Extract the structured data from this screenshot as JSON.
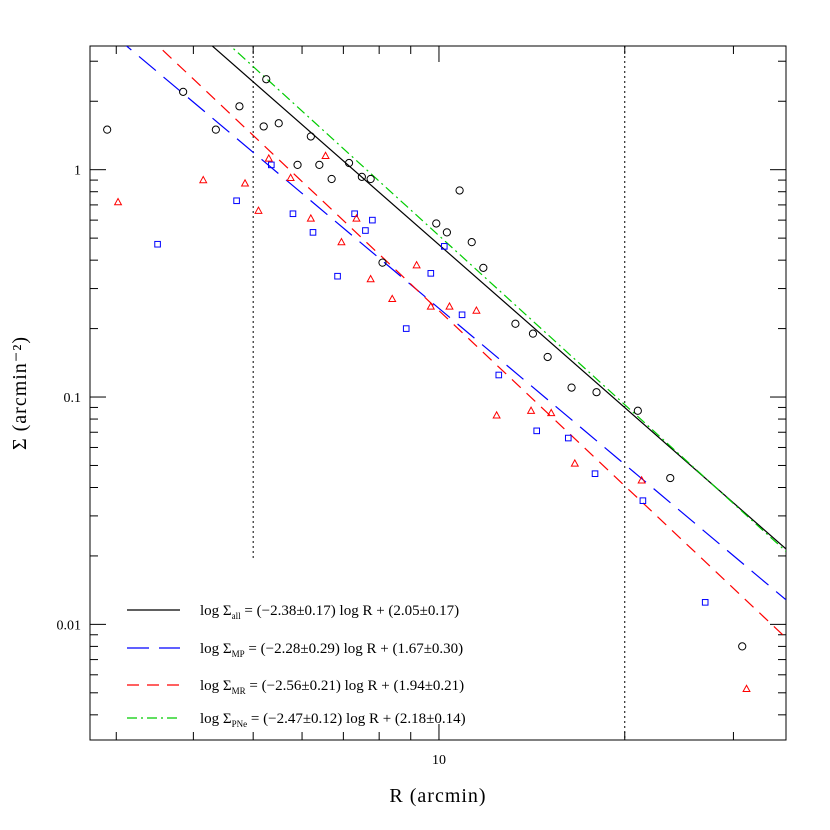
{
  "chart_data": {
    "type": "scatter",
    "xlabel": "R (arcmin)",
    "ylabel": "Σ (arcmin⁻²)",
    "x_scale": "log",
    "y_scale": "log",
    "xlim": [
      2.72,
      36.5
    ],
    "ylim": [
      0.0031,
      3.5
    ],
    "x_tick_labels": [
      {
        "value": 10,
        "label": "10"
      }
    ],
    "y_tick_labels": [
      {
        "value": 0.01,
        "label": "0.01"
      },
      {
        "value": 0.1,
        "label": "0.1"
      },
      {
        "value": 1,
        "label": "1"
      }
    ],
    "vertical_markers": [
      {
        "x": 5.0,
        "y_range": [
          0.0195,
          3.5
        ],
        "style": "dotted"
      },
      {
        "x": 20.0,
        "y_range": [
          0.0031,
          3.5
        ],
        "style": "dotted"
      }
    ],
    "series": [
      {
        "key": "all",
        "marker": "circle",
        "color": "#000000",
        "points": [
          [
            2.9,
            1.5
          ],
          [
            3.85,
            2.2
          ],
          [
            4.35,
            1.5
          ],
          [
            4.75,
            1.9
          ],
          [
            5.2,
            1.55
          ],
          [
            5.25,
            2.5
          ],
          [
            5.5,
            1.6
          ],
          [
            5.9,
            1.05
          ],
          [
            6.2,
            1.4
          ],
          [
            6.4,
            1.05
          ],
          [
            6.7,
            0.91
          ],
          [
            7.15,
            1.07
          ],
          [
            7.5,
            0.93
          ],
          [
            7.75,
            0.91
          ],
          [
            8.1,
            0.39
          ],
          [
            9.9,
            0.58
          ],
          [
            10.3,
            0.53
          ],
          [
            10.8,
            0.81
          ],
          [
            11.3,
            0.48
          ],
          [
            11.8,
            0.37
          ],
          [
            13.3,
            0.21
          ],
          [
            14.2,
            0.19
          ],
          [
            15.0,
            0.15
          ],
          [
            16.4,
            0.11
          ],
          [
            18.0,
            0.105
          ],
          [
            21.0,
            0.087
          ],
          [
            23.7,
            0.044
          ],
          [
            31.0,
            0.008
          ]
        ]
      },
      {
        "key": "MP",
        "marker": "square",
        "color": "#0000ff",
        "points": [
          [
            3.5,
            0.47
          ],
          [
            4.7,
            0.73
          ],
          [
            5.35,
            1.05
          ],
          [
            5.8,
            0.64
          ],
          [
            6.25,
            0.53
          ],
          [
            6.85,
            0.34
          ],
          [
            7.3,
            0.64
          ],
          [
            7.6,
            0.54
          ],
          [
            7.8,
            0.6
          ],
          [
            8.85,
            0.2
          ],
          [
            9.7,
            0.35
          ],
          [
            10.2,
            0.46
          ],
          [
            10.9,
            0.23
          ],
          [
            12.5,
            0.125
          ],
          [
            14.4,
            0.071
          ],
          [
            16.2,
            0.066
          ],
          [
            17.9,
            0.046
          ],
          [
            21.4,
            0.035
          ],
          [
            27.0,
            0.0125
          ]
        ]
      },
      {
        "key": "MR",
        "marker": "triangle",
        "color": "#ff0000",
        "points": [
          [
            3.02,
            0.72
          ],
          [
            4.15,
            0.9
          ],
          [
            4.85,
            0.87
          ],
          [
            5.1,
            0.66
          ],
          [
            5.3,
            1.12
          ],
          [
            5.75,
            0.92
          ],
          [
            6.2,
            0.61
          ],
          [
            6.55,
            1.15
          ],
          [
            6.95,
            0.48
          ],
          [
            7.35,
            0.61
          ],
          [
            7.75,
            0.33
          ],
          [
            8.4,
            0.27
          ],
          [
            9.2,
            0.38
          ],
          [
            9.7,
            0.25
          ],
          [
            10.4,
            0.25
          ],
          [
            11.5,
            0.24
          ],
          [
            12.4,
            0.083
          ],
          [
            14.1,
            0.087
          ],
          [
            15.2,
            0.085
          ],
          [
            16.6,
            0.051
          ],
          [
            21.3,
            0.043
          ],
          [
            31.5,
            0.0052
          ]
        ]
      }
    ],
    "fits": [
      {
        "key": "all",
        "color": "#000000",
        "dash": "",
        "slope": -2.38,
        "intercept": 2.05,
        "legend": {
          "label": "log Σ",
          "sub": "all",
          "rest": " = (−2.38±0.17) log R + (2.05±0.17)"
        }
      },
      {
        "key": "MP",
        "color": "#0000ff",
        "dash": "22 10",
        "slope": -2.28,
        "intercept": 1.67,
        "legend": {
          "label": "log Σ",
          "sub": "MP",
          "rest": " = (−2.28±0.29) log R + (1.67±0.30)"
        }
      },
      {
        "key": "MR",
        "color": "#ff0000",
        "dash": "12 8",
        "slope": -2.56,
        "intercept": 1.94,
        "legend": {
          "label": "log Σ",
          "sub": "MR",
          "rest": " = (−2.56±0.21) log R + (1.94±0.21)"
        }
      },
      {
        "key": "PNe",
        "color": "#00cc00",
        "dash": "10 4 2 4",
        "slope": -2.47,
        "intercept": 2.18,
        "legend": {
          "label": "log Σ",
          "sub": "PNe",
          "rest": " = (−2.47±0.12) log R + (2.18±0.14)"
        }
      }
    ],
    "legend_position": "bottom-left"
  }
}
